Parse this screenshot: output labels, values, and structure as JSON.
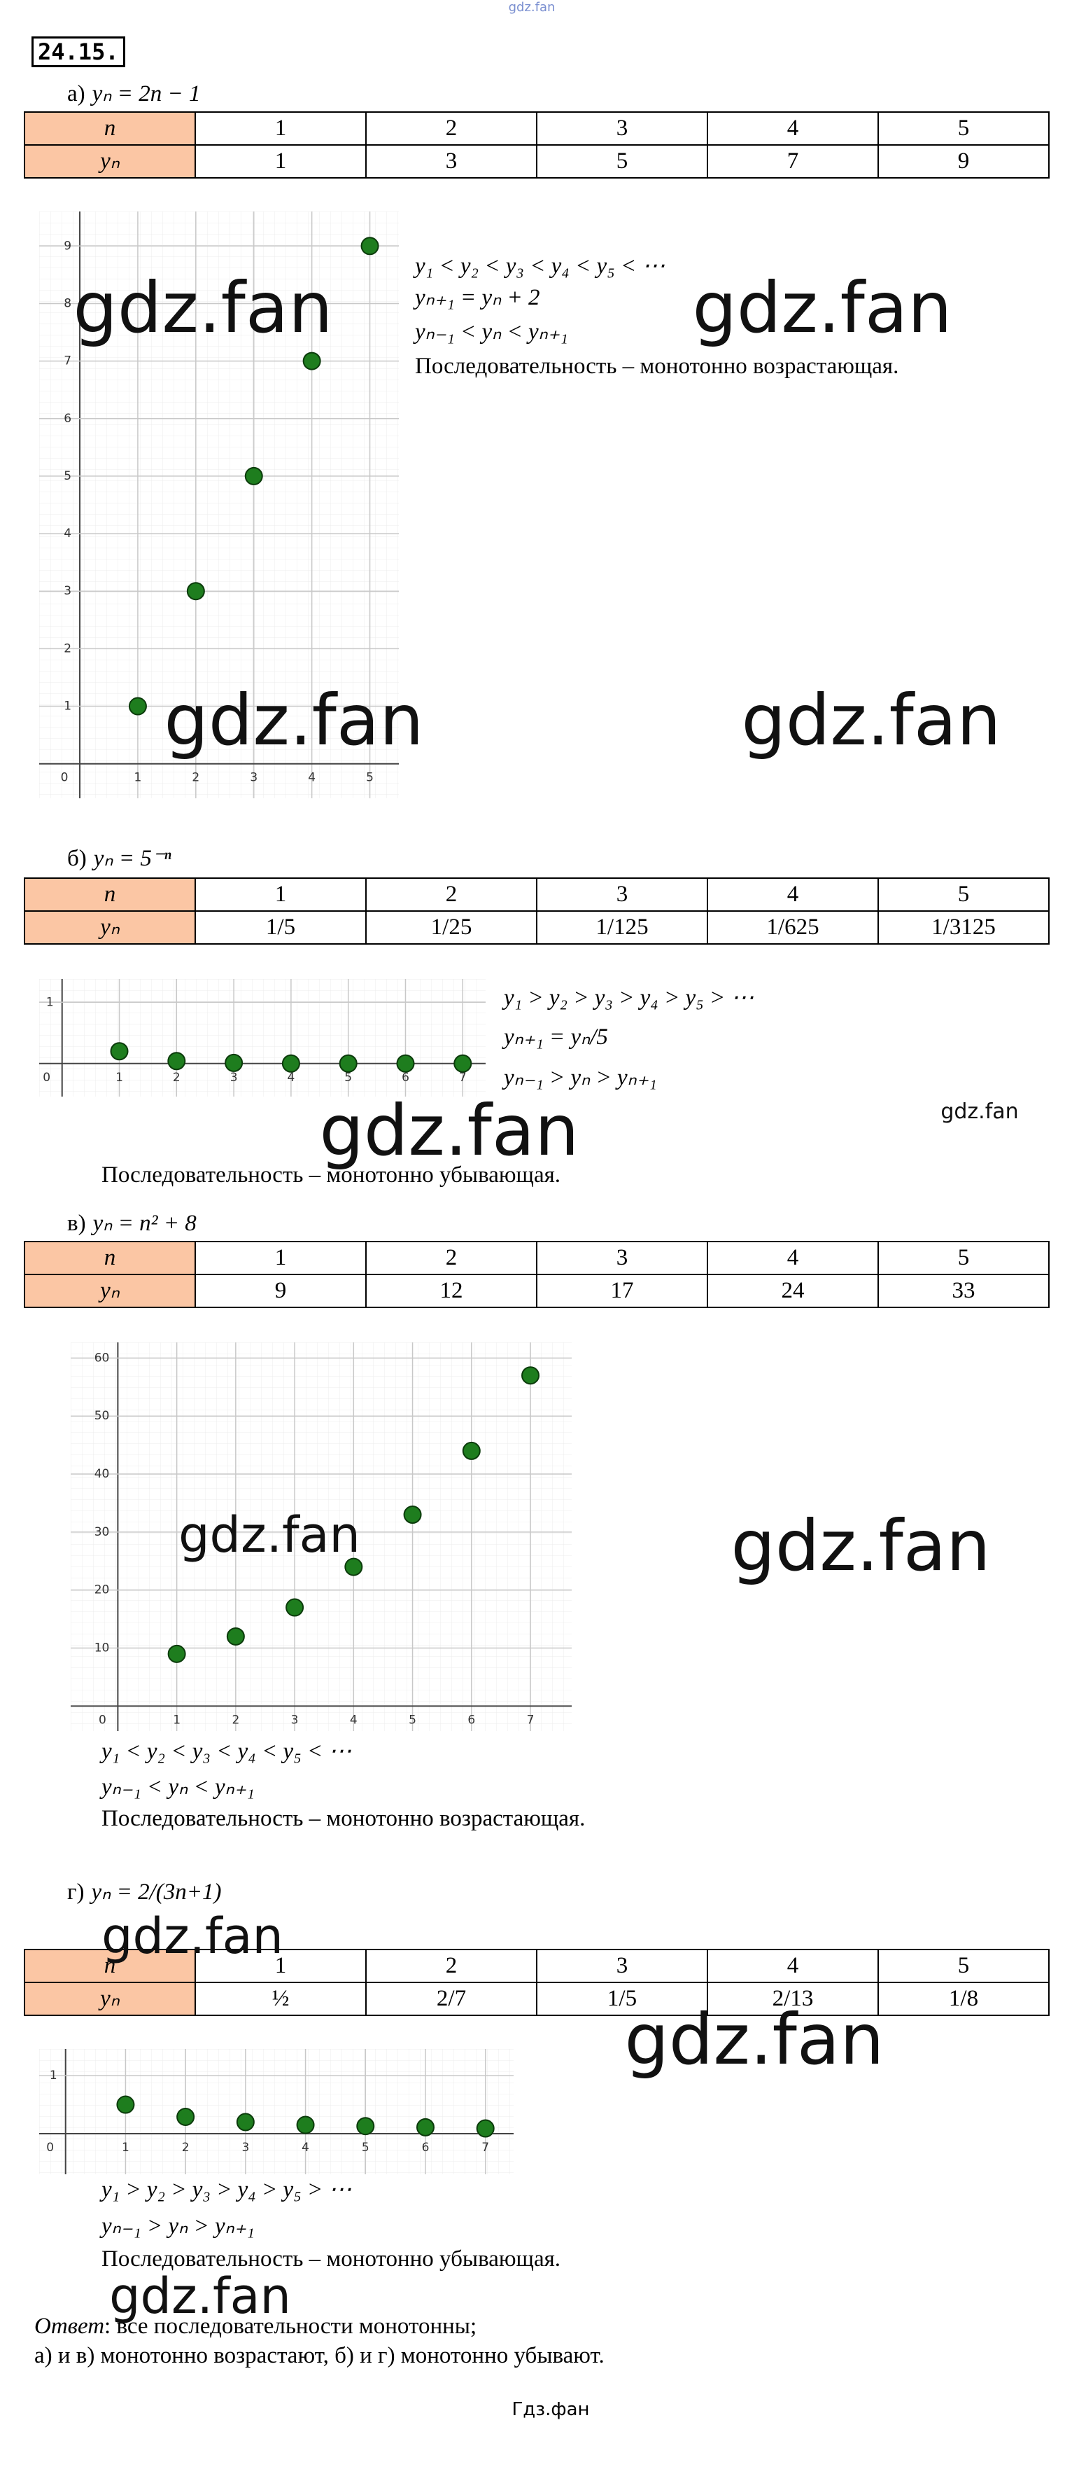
{
  "header": {
    "watermark": "gdz.fan",
    "number": "24.15."
  },
  "parts": [
    {
      "label": "а)",
      "formula": "yₙ = 2n − 1",
      "table": {
        "rows": [
          [
            "n",
            "1",
            "2",
            "3",
            "4",
            "5"
          ],
          [
            "yₙ",
            "1",
            "3",
            "5",
            "7",
            "9"
          ]
        ]
      },
      "chart": {
        "type": "scatter",
        "x": [
          1,
          2,
          3,
          4,
          5
        ],
        "values": [
          1,
          3,
          5,
          7,
          9
        ],
        "color": "#1e7d1e",
        "xlim": [
          -0.7,
          5.5
        ],
        "ylim": [
          -0.6,
          9.6
        ],
        "xticks": [
          0,
          1,
          2,
          3,
          4,
          5
        ],
        "yticks": [
          1,
          2,
          3,
          4,
          5,
          6,
          7,
          8,
          9
        ],
        "grid": true
      },
      "notes": [
        "y₁ < y₂ < y₃ < y₄ < y₅ < ⋯",
        "yₙ₊₁ = yₙ + 2",
        "yₙ₋₁ < yₙ < yₙ₊₁"
      ],
      "conclusion": "Последовательность – монотонно возрастающая."
    },
    {
      "label": "б)",
      "formula": "yₙ = 5⁻ⁿ",
      "table": {
        "rows": [
          [
            "n",
            "1",
            "2",
            "3",
            "4",
            "5"
          ],
          [
            "yₙ",
            "1/5",
            "1/25",
            "1/125",
            "1/625",
            "1/3125"
          ]
        ]
      },
      "chart": {
        "type": "scatter",
        "x": [
          1,
          2,
          3,
          4,
          5,
          6,
          7
        ],
        "values": [
          0.2,
          0.04,
          0.01,
          0,
          0,
          0,
          0
        ],
        "color": "#1e7d1e",
        "xlim": [
          -0.4,
          7.4
        ],
        "ylim": [
          -0.54,
          1.38
        ],
        "xticks": [
          0,
          1,
          2,
          3,
          4,
          5,
          6,
          7
        ],
        "yticks": [
          1
        ],
        "grid": true
      },
      "notes": [
        "y₁ > y₂ > y₃ > y₄ > y₅ > ⋯",
        "yₙ₊₁ = yₙ/5",
        "yₙ₋₁ > yₙ > yₙ₊₁"
      ],
      "conclusion": "Последовательность – монотонно убывающая."
    },
    {
      "label": "в)",
      "formula": "yₙ = n² + 8",
      "table": {
        "rows": [
          [
            "n",
            "1",
            "2",
            "3",
            "4",
            "5"
          ],
          [
            "yₙ",
            "9",
            "12",
            "17",
            "24",
            "33"
          ]
        ]
      },
      "chart": {
        "type": "scatter",
        "x": [
          1,
          2,
          3,
          4,
          5,
          6,
          7
        ],
        "values": [
          9,
          12,
          17,
          24,
          33,
          44,
          57
        ],
        "color": "#1e7d1e",
        "xlim": [
          -0.8,
          7.7
        ],
        "ylim": [
          -4.3,
          62.7
        ],
        "xticks": [
          0,
          1,
          2,
          3,
          4,
          5,
          6,
          7
        ],
        "yticks": [
          10,
          20,
          30,
          40,
          50,
          60
        ],
        "grid": true
      },
      "notes": [
        "y₁ < y₂ < y₃ < y₄ < y₅ < ⋯",
        "yₙ₋₁ < yₙ < yₙ₊₁"
      ],
      "conclusion": "Последовательность – монотонно возрастающая."
    },
    {
      "label": "г)",
      "formula": "yₙ = 2/(3n+1)",
      "table": {
        "rows": [
          [
            "n",
            "1",
            "2",
            "3",
            "4",
            "5"
          ],
          [
            "yₙ",
            "½",
            "2/7",
            "1/5",
            "2/13",
            "1/8"
          ]
        ]
      },
      "chart": {
        "type": "scatter",
        "x": [
          1,
          2,
          3,
          4,
          5,
          6,
          7
        ],
        "values": [
          0.5,
          0.29,
          0.2,
          0.15,
          0.13,
          0.11,
          0.09
        ],
        "color": "#1e7d1e",
        "xlim": [
          -0.44,
          7.47
        ],
        "ylim": [
          -0.7,
          1.46
        ],
        "xticks": [
          0,
          1,
          2,
          3,
          4,
          5,
          6,
          7
        ],
        "yticks": [
          1
        ],
        "grid": true
      },
      "notes": [
        "y₁ > y₂ > y₃ > y₄ > y₅ > ⋯",
        "yₙ₋₁ > yₙ > yₙ₊₁"
      ],
      "conclusion": "Последовательность – монотонно убывающая."
    }
  ],
  "watermarks": [
    "gdz.fan",
    "gdz.fan",
    "gdz.fan",
    "gdz.fan",
    "gdz.fan",
    "gdz.fan",
    "gdz.fan",
    "gdz.fan",
    "gdz.fan",
    "gdz.fan",
    "gdz.fan"
  ],
  "answer": {
    "label": "Ответ",
    "text": ": все последовательности монотонны;",
    "line2": "а) и в) монотонно возрастают, б) и г) монотонно убывают."
  },
  "footer": "Гдз.фан"
}
